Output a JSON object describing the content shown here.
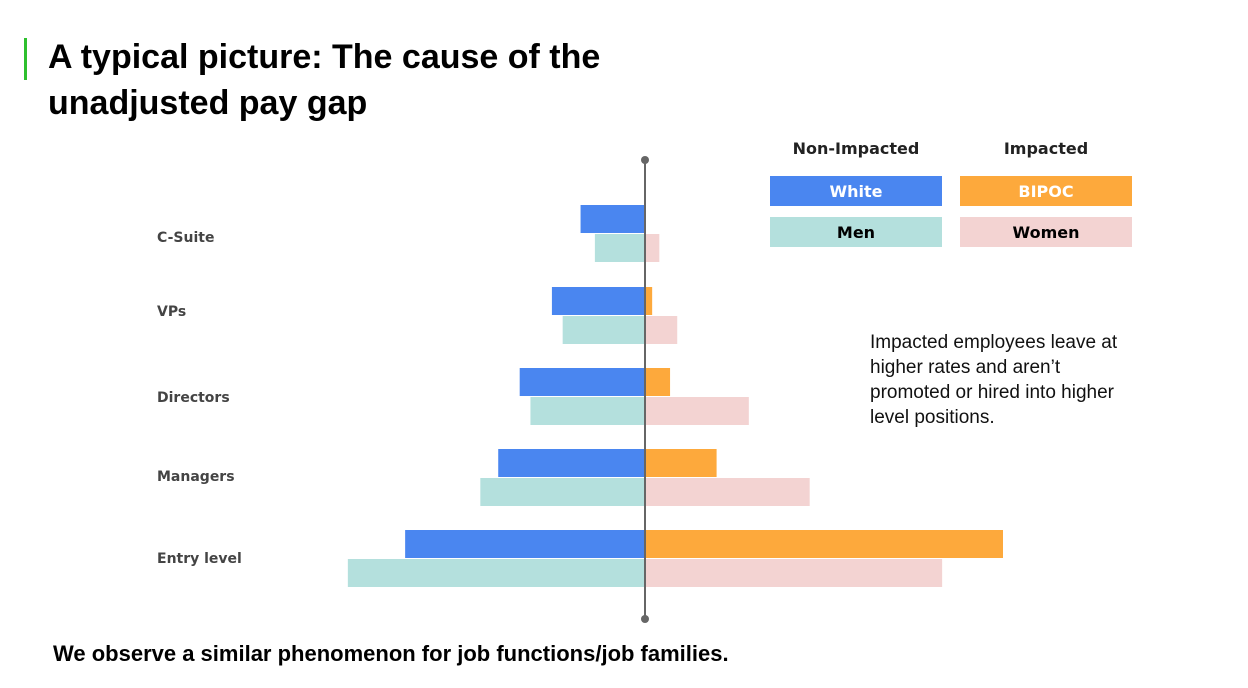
{
  "slide": {
    "title": "A typical picture: The cause of the unadjusted pay gap",
    "footer": "We observe a similar phenomenon for job functions/job families.",
    "callout": "Impacted employees leave at higher rates and aren’t promoted or hired into higher level positions."
  },
  "legend": {
    "non_impacted_header": "Non-Impacted",
    "impacted_header": "Impacted",
    "white": "White",
    "bipoc": "BIPOC",
    "men": "Men",
    "women": "Women"
  },
  "colors": {
    "white": "#4a86f0",
    "bipoc": "#fda93c",
    "men": "#b4e0dd",
    "women": "#f3d3d2",
    "axis": "#666666",
    "accent": "#2ec02e"
  },
  "chart_data": {
    "type": "bar",
    "orientation": "horizontal-diverging",
    "categories": [
      "C-Suite",
      "VPs",
      "Directors",
      "Managers",
      "Entry level"
    ],
    "series": [
      {
        "name": "White",
        "side": "left",
        "values": [
          1.8,
          2.6,
          3.5,
          4.1,
          6.7
        ]
      },
      {
        "name": "Men",
        "side": "left",
        "values": [
          1.4,
          2.3,
          3.2,
          4.6,
          8.3
        ]
      },
      {
        "name": "BIPOC",
        "side": "right",
        "values": [
          0,
          0.2,
          0.7,
          2.0,
          10.0
        ]
      },
      {
        "name": "Women",
        "side": "right",
        "values": [
          0.4,
          0.9,
          2.9,
          4.6,
          8.3
        ]
      }
    ],
    "xlim": [
      -10,
      10
    ],
    "grid": false,
    "legend_position": "top-right"
  }
}
